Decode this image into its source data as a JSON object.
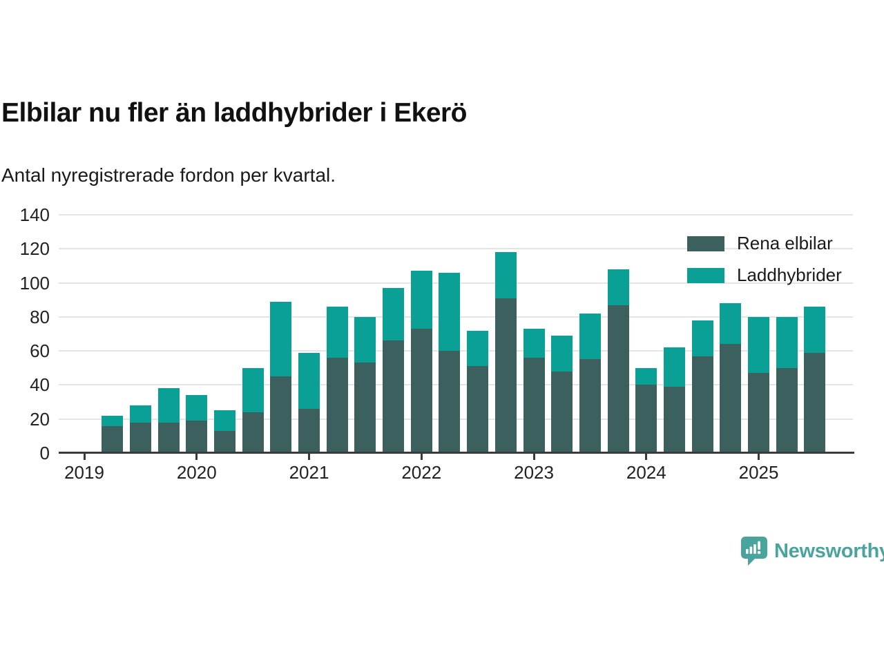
{
  "header": {
    "title": "Elbilar nu fler än laddhybrider i Ekerö",
    "subtitle": "Antal nyregistrerade fordon per kvartal."
  },
  "chart_data": {
    "type": "bar",
    "stacked": true,
    "title": "Elbilar nu fler än laddhybrider i Ekerö",
    "subtitle": "Antal nyregistrerade fordon per kvartal.",
    "categories": [
      "2019 Q2",
      "2019 Q3",
      "2019 Q4",
      "2020 Q1",
      "2020 Q2",
      "2020 Q3",
      "2020 Q4",
      "2021 Q1",
      "2021 Q2",
      "2021 Q3",
      "2021 Q4",
      "2022 Q1",
      "2022 Q2",
      "2022 Q3",
      "2022 Q4",
      "2023 Q1",
      "2023 Q2",
      "2023 Q3",
      "2023 Q4",
      "2024 Q1",
      "2024 Q2",
      "2024 Q3",
      "2024 Q4",
      "2025 Q1",
      "2025 Q2",
      "2025 Q3"
    ],
    "series": [
      {
        "name": "Rena elbilar",
        "color": "#3b605d",
        "values": [
          16,
          18,
          18,
          19,
          13,
          24,
          45,
          26,
          56,
          53,
          66,
          73,
          60,
          51,
          91,
          56,
          48,
          55,
          87,
          40,
          39,
          57,
          64,
          47,
          50,
          59
        ]
      },
      {
        "name": "Laddhybrider",
        "color": "#0ba096",
        "values": [
          6,
          10,
          20,
          15,
          12,
          26,
          44,
          33,
          30,
          27,
          31,
          34,
          46,
          21,
          27,
          17,
          21,
          27,
          21,
          10,
          23,
          21,
          24,
          33,
          30,
          27
        ]
      }
    ],
    "stack_totals": [
      22,
      28,
      38,
      34,
      25,
      50,
      89,
      59,
      86,
      80,
      97,
      107,
      106,
      72,
      118,
      73,
      69,
      82,
      108,
      50,
      62,
      78,
      88,
      80,
      80,
      86
    ],
    "x_tick_labels": [
      "2019",
      "2020",
      "2021",
      "2022",
      "2023",
      "2024",
      "2025"
    ],
    "y_ticks": [
      0,
      20,
      40,
      60,
      80,
      100,
      120,
      140
    ],
    "ylim": [
      0,
      140
    ],
    "xlabel": "",
    "ylabel": "",
    "grid": true,
    "legend_position": "top-right"
  },
  "branding": {
    "logo_text": "Newsworthy"
  },
  "colors": {
    "rena_elbilar": "#3b605d",
    "laddhybrider": "#0ba096",
    "gridline": "#e4e4e4",
    "axis": "#3a3a3a",
    "text": "#1a1a1a",
    "brand_teal": "#4aa49e"
  }
}
